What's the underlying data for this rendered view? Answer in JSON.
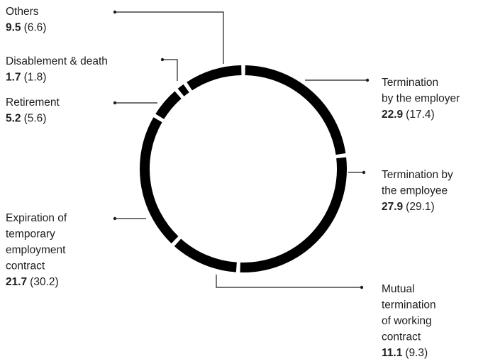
{
  "chart_data": {
    "type": "donut",
    "categories": [
      [
        "Termination",
        "by the employer"
      ],
      [
        "Termination by",
        "the employee"
      ],
      [
        "Mutual",
        "termination",
        "of working",
        "contract"
      ],
      [
        "Expiration of",
        "temporary",
        "employment",
        "contract"
      ],
      [
        "Retirement"
      ],
      [
        "Disablement & death"
      ],
      [
        "Others"
      ]
    ],
    "values": [
      22.9,
      27.9,
      11.1,
      21.7,
      5.2,
      1.7,
      9.5
    ],
    "previous_labels": [
      "(17.4)",
      "(29.1)",
      "(9.3)",
      "(30.2)",
      "(5.6)",
      "(1.8)",
      "(6.6)"
    ],
    "color": "#000000"
  }
}
